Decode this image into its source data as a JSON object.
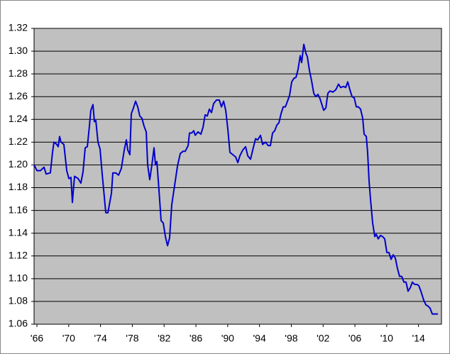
{
  "chart_data": {
    "type": "line",
    "x": [
      1965.64,
      1966.0,
      1966.44,
      1966.89,
      1967.16,
      1967.69,
      1967.96,
      1968.14,
      1968.5,
      1968.68,
      1968.85,
      1969.03,
      1969.39,
      1969.75,
      1970.02,
      1970.28,
      1970.46,
      1970.73,
      1971.18,
      1971.53,
      1971.8,
      1972.07,
      1972.34,
      1972.6,
      1972.78,
      1973.05,
      1973.23,
      1973.41,
      1973.68,
      1973.94,
      1974.21,
      1974.66,
      1974.93,
      1975.37,
      1975.55,
      1975.91,
      1976.27,
      1976.62,
      1976.98,
      1977.25,
      1977.43,
      1977.69,
      1977.87,
      1978.14,
      1978.41,
      1978.68,
      1978.94,
      1979.21,
      1979.48,
      1979.75,
      1979.93,
      1980.19,
      1980.46,
      1980.73,
      1980.91,
      1981.09,
      1981.35,
      1981.62,
      1981.89,
      1982.16,
      1982.43,
      1982.69,
      1982.96,
      1983.32,
      1983.68,
      1984.03,
      1984.39,
      1984.66,
      1985.02,
      1985.19,
      1985.46,
      1985.73,
      1985.91,
      1986.27,
      1986.62,
      1986.89,
      1987.16,
      1987.43,
      1987.69,
      1987.96,
      1988.23,
      1988.59,
      1988.94,
      1989.21,
      1989.48,
      1989.75,
      1990.02,
      1990.28,
      1990.64,
      1991.0,
      1991.27,
      1991.53,
      1991.89,
      1992.25,
      1992.52,
      1992.87,
      1993.14,
      1993.5,
      1993.77,
      1994.12,
      1994.39,
      1994.75,
      1995.1,
      1995.37,
      1995.64,
      1995.91,
      1996.18,
      1996.44,
      1996.71,
      1996.98,
      1997.25,
      1997.52,
      1997.78,
      1998.05,
      1998.32,
      1998.59,
      1998.85,
      1999.12,
      1999.3,
      1999.57,
      1999.84,
      2000.02,
      2000.28,
      2000.55,
      2000.82,
      2001.09,
      2001.35,
      2001.62,
      2001.8,
      2002.07,
      2002.34,
      2002.6,
      2002.87,
      2003.23,
      2003.59,
      2003.94,
      2004.21,
      2004.57,
      2004.84,
      2005.1,
      2005.37,
      2005.64,
      2005.91,
      2006.18,
      2006.44,
      2006.71,
      2006.98,
      2007.16,
      2007.43,
      2007.6,
      2007.78,
      2007.96,
      2008.23,
      2008.5,
      2008.68,
      2008.94,
      2009.21,
      2009.48,
      2009.75,
      2010.02,
      2010.28,
      2010.55,
      2010.82,
      2011.09,
      2011.35,
      2011.62,
      2011.89,
      2012.16,
      2012.43,
      2012.69,
      2012.96,
      2013.23,
      2013.5,
      2013.77,
      2014.03,
      2014.3,
      2014.66,
      2014.93,
      2015.19,
      2015.46,
      2015.73,
      2016.0,
      2016.44
    ],
    "series": [
      {
        "color": "#0000cc",
        "values": [
          1.2,
          1.195,
          1.195,
          1.198,
          1.192,
          1.193,
          1.211,
          1.22,
          1.218,
          1.216,
          1.225,
          1.22,
          1.218,
          1.195,
          1.188,
          1.189,
          1.167,
          1.19,
          1.188,
          1.184,
          1.194,
          1.215,
          1.216,
          1.234,
          1.248,
          1.253,
          1.238,
          1.239,
          1.22,
          1.214,
          1.192,
          1.158,
          1.158,
          1.175,
          1.193,
          1.193,
          1.191,
          1.197,
          1.213,
          1.222,
          1.213,
          1.209,
          1.245,
          1.25,
          1.256,
          1.251,
          1.243,
          1.241,
          1.234,
          1.229,
          1.2,
          1.187,
          1.2,
          1.215,
          1.2,
          1.203,
          1.178,
          1.151,
          1.149,
          1.137,
          1.129,
          1.136,
          1.165,
          1.182,
          1.199,
          1.21,
          1.212,
          1.212,
          1.217,
          1.228,
          1.228,
          1.23,
          1.226,
          1.229,
          1.227,
          1.233,
          1.244,
          1.243,
          1.249,
          1.246,
          1.254,
          1.257,
          1.257,
          1.251,
          1.256,
          1.248,
          1.231,
          1.211,
          1.209,
          1.207,
          1.202,
          1.208,
          1.213,
          1.216,
          1.208,
          1.205,
          1.213,
          1.223,
          1.222,
          1.226,
          1.218,
          1.22,
          1.217,
          1.217,
          1.228,
          1.23,
          1.235,
          1.237,
          1.245,
          1.251,
          1.251,
          1.256,
          1.261,
          1.273,
          1.276,
          1.277,
          1.284,
          1.296,
          1.29,
          1.306,
          1.298,
          1.295,
          1.283,
          1.274,
          1.263,
          1.26,
          1.262,
          1.258,
          1.254,
          1.248,
          1.25,
          1.263,
          1.265,
          1.264,
          1.266,
          1.271,
          1.268,
          1.269,
          1.268,
          1.273,
          1.266,
          1.26,
          1.259,
          1.251,
          1.251,
          1.249,
          1.241,
          1.227,
          1.225,
          1.211,
          1.186,
          1.17,
          1.149,
          1.137,
          1.139,
          1.135,
          1.138,
          1.137,
          1.135,
          1.123,
          1.123,
          1.117,
          1.121,
          1.118,
          1.109,
          1.102,
          1.102,
          1.097,
          1.097,
          1.089,
          1.092,
          1.097,
          1.095,
          1.095,
          1.094,
          1.089,
          1.081,
          1.077,
          1.076,
          1.074,
          1.069,
          1.069,
          1.069
        ]
      }
    ],
    "xlim": [
      1965.64,
      2016.89
    ],
    "xticks": [
      {
        "value": 1966,
        "label": "'66"
      },
      {
        "value": 1970,
        "label": "'70"
      },
      {
        "value": 1974,
        "label": "'74"
      },
      {
        "value": 1978,
        "label": "'78"
      },
      {
        "value": 1982,
        "label": "'82"
      },
      {
        "value": 1986,
        "label": "'86"
      },
      {
        "value": 1990,
        "label": "'90"
      },
      {
        "value": 1994,
        "label": "'94"
      },
      {
        "value": 1998,
        "label": "'98"
      },
      {
        "value": 2002,
        "label": "'02"
      },
      {
        "value": 2006,
        "label": "'06"
      },
      {
        "value": 2010,
        "label": "'10"
      },
      {
        "value": 2014,
        "label": "'14"
      }
    ],
    "ylim": [
      1.06,
      1.32
    ],
    "yticks": [
      1.06,
      1.08,
      {
        "value": 1.1,
        "label": "1.10"
      },
      1.12,
      1.14,
      1.16,
      1.18,
      {
        "value": 1.2,
        "label": "1.20"
      },
      1.22,
      1.24,
      1.26,
      1.28,
      {
        "value": 1.3,
        "label": "1.30"
      },
      1.32
    ],
    "grid": true
  }
}
